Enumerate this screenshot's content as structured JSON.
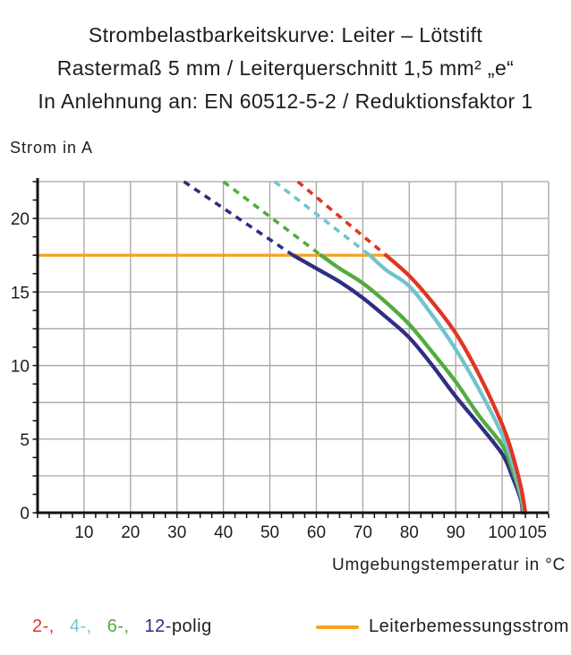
{
  "title": {
    "line1": "Strombelastbarkeitskurve: Leiter – Lötstift",
    "line2": "Rastermaß 5 mm / Leiterquerschnitt 1,5 mm² „e“",
    "line3": "In Anlehnung an: EN 60512-5-2 / Reduktionsfaktor 1"
  },
  "axes": {
    "y_label": "Strom in A",
    "x_label": "Umgebungstemperatur in °C"
  },
  "legend": {
    "pole_items": [
      {
        "label": "2-,",
        "color": "#e03526"
      },
      {
        "label": "4-,",
        "color": "#72c3cc"
      },
      {
        "label": "6-,",
        "color": "#53ab40"
      },
      {
        "label": "12-",
        "color": "#2f2e84"
      },
      {
        "label": "polig",
        "color": "#1d1d1b"
      }
    ],
    "rated_label": "Leiterbemessungsstrom",
    "rated_color": "#f5a21f"
  },
  "colors": {
    "grid": "#a5a5a4",
    "axis": "#13110c",
    "text": "#1d1d1b",
    "background": "#ffffff"
  },
  "chart_data": {
    "type": "line",
    "title": "Strombelastbarkeitskurve: Leiter – Lötstift / Rastermaß 5 mm / Leiterquerschnitt 1,5 mm² „e“ / In Anlehnung an: EN 60512-5-2 / Reduktionsfaktor 1",
    "xlabel": "Umgebungstemperatur in °C",
    "ylabel": "Strom in A",
    "xlim": [
      0,
      110
    ],
    "ylim": [
      0,
      22.5
    ],
    "x_grid_step": 10,
    "y_grid_step": 2.5,
    "x_minor_tick_step": 2.5,
    "y_minor_tick_step": 1.25,
    "x_tick_labels": [
      10,
      20,
      30,
      40,
      50,
      60,
      70,
      80,
      90,
      100,
      105
    ],
    "y_tick_labels": [
      0,
      5,
      10,
      15,
      20
    ],
    "grid": true,
    "legend_position": "bottom",
    "rated_line": {
      "label": "Leiterbemessungsstrom",
      "current_A": 17.5,
      "x_start": 0,
      "x_end": 75.2,
      "color": "#f5a21f"
    },
    "series": [
      {
        "name": "2-polig",
        "color": "#e03526",
        "dashed_above_rated": [
          [
            56,
            22.5
          ],
          [
            75,
            17.5
          ]
        ],
        "solid": [
          [
            75,
            17.5
          ],
          [
            80,
            16.1
          ],
          [
            85,
            14.3
          ],
          [
            90,
            12.2
          ],
          [
            95,
            9.4
          ],
          [
            100,
            6.0
          ],
          [
            102,
            4.2
          ],
          [
            104,
            1.8
          ],
          [
            105,
            0
          ]
        ]
      },
      {
        "name": "4-polig",
        "color": "#72c3cc",
        "dashed_above_rated": [
          [
            51,
            22.5
          ],
          [
            71.5,
            17.5
          ]
        ],
        "solid": [
          [
            71.5,
            17.5
          ],
          [
            75,
            16.5
          ],
          [
            80,
            15.4
          ],
          [
            85,
            13.4
          ],
          [
            90,
            11.1
          ],
          [
            95,
            8.4
          ],
          [
            100,
            5.3
          ],
          [
            102,
            3.6
          ],
          [
            104,
            1.3
          ],
          [
            104.8,
            0
          ]
        ]
      },
      {
        "name": "6-polig",
        "color": "#53ab40",
        "dashed_above_rated": [
          [
            40,
            22.5
          ],
          [
            61,
            17.5
          ]
        ],
        "solid": [
          [
            61,
            17.5
          ],
          [
            65,
            16.6
          ],
          [
            70,
            15.6
          ],
          [
            75,
            14.3
          ],
          [
            80,
            12.8
          ],
          [
            85,
            10.9
          ],
          [
            90,
            8.9
          ],
          [
            95,
            6.6
          ],
          [
            100,
            4.6
          ],
          [
            102,
            3.1
          ],
          [
            104,
            1.1
          ],
          [
            104.6,
            0
          ]
        ]
      },
      {
        "name": "12-polig",
        "color": "#2f2e84",
        "dashed_above_rated": [
          [
            31.5,
            22.5
          ],
          [
            55,
            17.5
          ]
        ],
        "solid": [
          [
            55,
            17.5
          ],
          [
            60,
            16.6
          ],
          [
            65,
            15.7
          ],
          [
            70,
            14.6
          ],
          [
            75,
            13.3
          ],
          [
            80,
            11.9
          ],
          [
            85,
            10.0
          ],
          [
            90,
            7.9
          ],
          [
            95,
            6.0
          ],
          [
            100,
            4.0
          ],
          [
            102,
            2.6
          ],
          [
            104,
            0.9
          ],
          [
            104.4,
            0
          ]
        ]
      }
    ]
  }
}
